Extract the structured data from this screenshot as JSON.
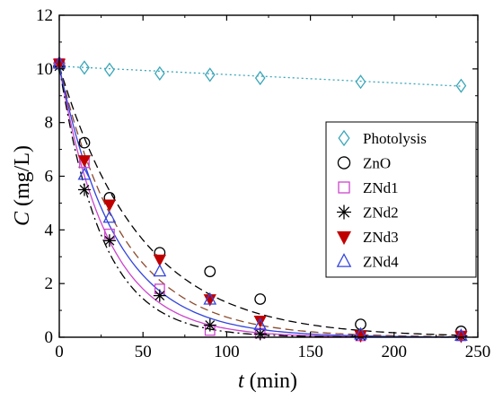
{
  "chart_data": {
    "type": "scatter",
    "xlabel_var": "t",
    "xlabel_unit": " (min)",
    "ylabel_var": "C",
    "ylabel_unit": " (mg/L)",
    "xlim": [
      0,
      250
    ],
    "ylim": [
      0,
      12
    ],
    "xticks": [
      0,
      50,
      100,
      150,
      200,
      250
    ],
    "yticks": [
      0,
      2,
      4,
      6,
      8,
      10,
      12
    ],
    "grid": false,
    "legend_position": "right",
    "series": [
      {
        "name": "Photolysis",
        "marker": "diamond",
        "color": "#3aa6b9",
        "x": [
          0,
          15,
          30,
          60,
          90,
          120,
          180,
          240
        ],
        "y": [
          10.15,
          10.05,
          9.97,
          9.83,
          9.78,
          9.66,
          9.52,
          9.37
        ],
        "fit": {
          "type": "linear",
          "style": "dotted",
          "color": "#3aa6b9",
          "a": 10.1,
          "b": -0.0031
        }
      },
      {
        "name": "ZnO",
        "marker": "circle",
        "color": "#000000",
        "x": [
          0,
          15,
          30,
          60,
          90,
          120,
          180,
          240
        ],
        "y": [
          10.2,
          7.25,
          5.2,
          3.15,
          2.45,
          1.42,
          0.48,
          0.22
        ],
        "fit": {
          "type": "exp",
          "style": "dashed",
          "color": "#000000",
          "a": 10.1,
          "k": 0.0205
        }
      },
      {
        "name": "ZNd1",
        "marker": "square",
        "color": "#cc44cc",
        "x": [
          0,
          15,
          30,
          60,
          90,
          120,
          180,
          240
        ],
        "y": [
          10.2,
          6.5,
          3.85,
          1.8,
          0.25,
          0.15,
          0.05,
          0.05
        ],
        "fit": {
          "type": "exp",
          "style": "solid",
          "color": "#cc44cc",
          "a": 10.1,
          "k": 0.0345
        }
      },
      {
        "name": "ZNd2",
        "marker": "star",
        "color": "#000000",
        "x": [
          0,
          15,
          30,
          60,
          90,
          120,
          180,
          240
        ],
        "y": [
          10.1,
          5.5,
          3.6,
          1.55,
          0.45,
          0.12,
          0.05,
          0.05
        ],
        "fit": {
          "type": "exp",
          "style": "dashdot",
          "color": "#000000",
          "a": 10.1,
          "k": 0.039
        }
      },
      {
        "name": "ZNd3",
        "marker": "triangle-down",
        "color": "#c00000",
        "x": [
          0,
          15,
          30,
          60,
          90,
          120,
          180,
          240
        ],
        "y": [
          10.2,
          6.6,
          4.95,
          2.9,
          1.42,
          0.62,
          0.08,
          0.05
        ],
        "fit": {
          "type": "exp",
          "style": "dashed",
          "color": "#8b4a2b",
          "a": 10.1,
          "k": 0.026
        }
      },
      {
        "name": "ZNd4",
        "marker": "triangle-up",
        "color": "#3344dd",
        "x": [
          0,
          15,
          30,
          60,
          90,
          120,
          180,
          240
        ],
        "y": [
          10.2,
          6.05,
          4.45,
          2.45,
          1.4,
          0.45,
          0.1,
          0.05
        ],
        "fit": {
          "type": "exp",
          "style": "solid",
          "color": "#3344dd",
          "a": 10.1,
          "k": 0.0295
        }
      }
    ]
  }
}
